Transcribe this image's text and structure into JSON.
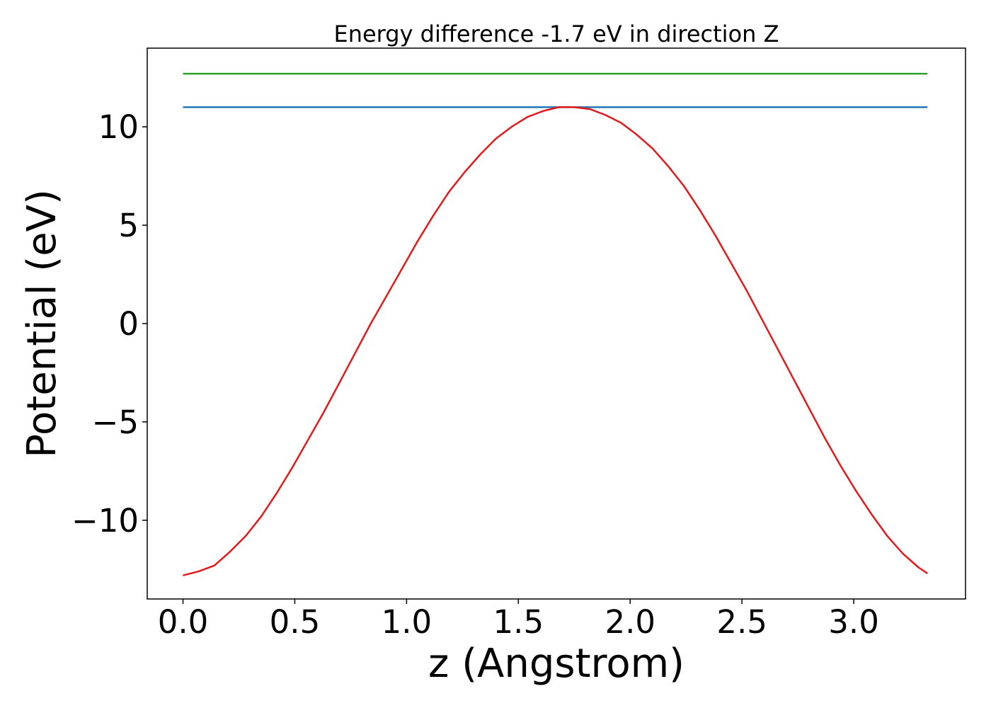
{
  "chart_data": {
    "type": "line",
    "title": "Energy difference -1.7 eV in direction Z",
    "xlabel": "z (Angstrom)",
    "ylabel": "Potential (eV)",
    "xlim": [
      -0.16,
      3.5
    ],
    "ylim": [
      -14,
      14
    ],
    "x_ticks": [
      0.0,
      0.5,
      1.0,
      1.5,
      2.0,
      2.5,
      3.0
    ],
    "x_tick_labels": [
      "0.0",
      "0.5",
      "1.0",
      "1.5",
      "2.0",
      "2.5",
      "3.0"
    ],
    "y_ticks": [
      -10,
      -5,
      0,
      5,
      10
    ],
    "y_tick_labels": [
      "−10",
      "−5",
      "0",
      "5",
      "10"
    ],
    "grid": false,
    "legend": "none",
    "series": [
      {
        "color": "#2ca02c",
        "x": [
          0.0,
          3.33
        ],
        "y": [
          12.7,
          12.7
        ]
      },
      {
        "color": "#1f77b4",
        "x": [
          0.0,
          3.33
        ],
        "y": [
          11.0,
          11.0
        ]
      },
      {
        "color": "#e31a1c",
        "x": [
          0.0,
          0.07,
          0.14,
          0.21,
          0.28,
          0.35,
          0.42,
          0.49,
          0.56,
          0.63,
          0.7,
          0.77,
          0.84,
          0.91,
          0.98,
          1.05,
          1.12,
          1.19,
          1.26,
          1.33,
          1.4,
          1.47,
          1.54,
          1.61,
          1.68,
          1.75,
          1.82,
          1.89,
          1.96,
          2.03,
          2.1,
          2.17,
          2.24,
          2.31,
          2.38,
          2.45,
          2.52,
          2.59,
          2.66,
          2.73,
          2.8,
          2.87,
          2.94,
          3.01,
          3.08,
          3.15,
          3.22,
          3.29,
          3.33
        ],
        "y": [
          -12.8,
          -12.6,
          -12.3,
          -11.6,
          -10.8,
          -9.8,
          -8.6,
          -7.3,
          -5.9,
          -4.5,
          -3.0,
          -1.5,
          0.0,
          1.4,
          2.8,
          4.2,
          5.5,
          6.7,
          7.7,
          8.6,
          9.4,
          10.0,
          10.5,
          10.8,
          11.0,
          11.0,
          10.9,
          10.6,
          10.2,
          9.6,
          8.9,
          8.0,
          7.0,
          5.8,
          4.5,
          3.1,
          1.7,
          0.2,
          -1.3,
          -2.8,
          -4.3,
          -5.8,
          -7.2,
          -8.5,
          -9.7,
          -10.8,
          -11.7,
          -12.4,
          -12.7
        ]
      }
    ]
  }
}
